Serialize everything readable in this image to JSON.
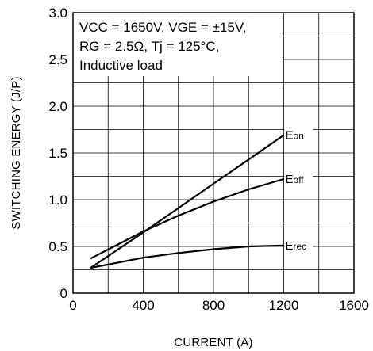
{
  "chart_data": {
    "type": "line",
    "xlabel": "CURRENT (A)",
    "ylabel": "SWITCHING ENERGY (J/P)",
    "xlim": [
      0,
      1600
    ],
    "ylim": [
      0,
      3.0
    ],
    "x_ticks": [
      "0",
      "400",
      "800",
      "1200",
      "1600"
    ],
    "y_ticks": [
      "0",
      "0.5",
      "1.0",
      "1.5",
      "2.0",
      "2.5",
      "3.0"
    ],
    "grid": true,
    "annotation": {
      "line1": "VCC = 1650V, VGE = ±15V,",
      "line2": "RG = 2.5Ω, Tj = 125°C,",
      "line3": "Inductive load"
    },
    "series": [
      {
        "name": "Eon",
        "x": [
          100,
          400,
          600,
          800,
          1000,
          1200
        ],
        "y": [
          0.27,
          0.65,
          0.91,
          1.17,
          1.43,
          1.69
        ]
      },
      {
        "name": "Eoff",
        "x": [
          100,
          400,
          600,
          800,
          1000,
          1200
        ],
        "y": [
          0.37,
          0.66,
          0.83,
          0.98,
          1.11,
          1.22
        ]
      },
      {
        "name": "Erec",
        "x": [
          100,
          400,
          600,
          800,
          1000,
          1200
        ],
        "y": [
          0.27,
          0.38,
          0.43,
          0.47,
          0.5,
          0.51
        ]
      }
    ]
  }
}
